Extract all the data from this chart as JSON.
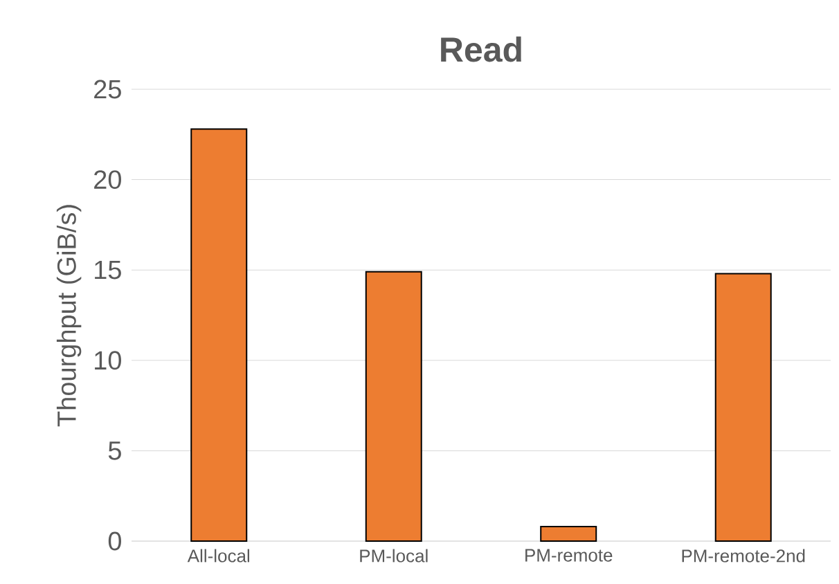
{
  "chart_data": {
    "type": "bar",
    "title": "Read",
    "ylabel": "Thourghput (GiB/s)",
    "categories": [
      "All-local",
      "PM-local",
      "PM-remote",
      "PM-remote-2nd"
    ],
    "values": [
      22.8,
      14.9,
      0.8,
      14.8
    ],
    "color": "#ed7d31",
    "ylim": [
      0,
      25
    ],
    "yticks": [
      0,
      5,
      10,
      15,
      20,
      25
    ],
    "grid": "y"
  }
}
